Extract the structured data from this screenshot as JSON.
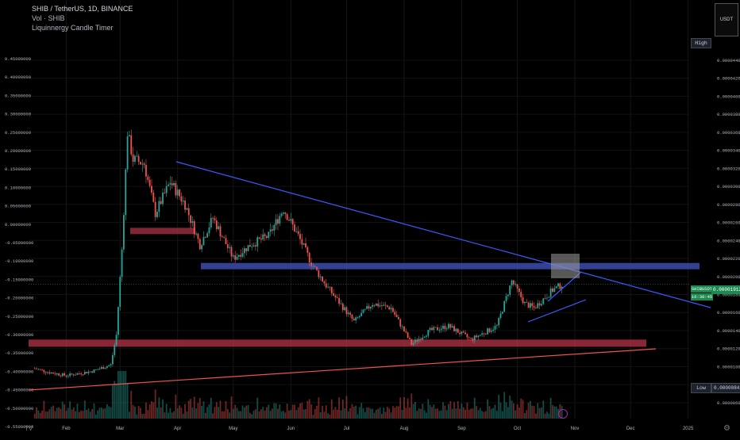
{
  "header": {
    "title": "SHIB / TetherUS, 1D, BINANCE",
    "volume_label": "Vol · SHIB",
    "indicator_label": "Liquinnergy Candle Timer"
  },
  "toolbar": {
    "currency_button": "USDT"
  },
  "badges": {
    "high": "High",
    "low": "Low",
    "low_value": "0.00000842",
    "symbol": "SHIBUSDT",
    "current_value": "0.00001912",
    "timer": "16:38:45"
  },
  "colors": {
    "background": "#000000",
    "up": "#26a69a",
    "down": "#ef5350",
    "trendline": "#3d5afe",
    "support_zone": "#b7344a",
    "resistance_zone": "#3f51b5",
    "target_box": "#9e9e9e"
  },
  "icons": {
    "tradingview": "tv-logo-icon",
    "settings": "gear-icon",
    "lightning": "lightning-icon"
  },
  "chart_data": {
    "type": "candlestick",
    "symbol": "SHIB / TetherUS",
    "interval": "1D",
    "exchange": "BINANCE",
    "x_tick_labels": [
      "Feb",
      "Mar",
      "Apr",
      "May",
      "Jun",
      "Jul",
      "Aug",
      "Sep",
      "Oct",
      "Nov",
      "Dec",
      "2025"
    ],
    "left_axis_labels": [
      "0.45000000",
      "0.40000000",
      "0.35000000",
      "0.30000000",
      "0.25000000",
      "0.20000000",
      "0.15000000",
      "0.10000000",
      "0.05000000",
      "0.00000000",
      "-0.05000000",
      "-0.10000000",
      "-0.15000000",
      "-0.20000000",
      "-0.25000000",
      "-0.30000000",
      "-0.35000000",
      "-0.40000000",
      "-0.45000000",
      "-0.50000000",
      "-0.55000000"
    ],
    "right_axis_labels": [
      "0.00004400",
      "0.00004200",
      "0.00004000",
      "0.00003800",
      "0.00003600",
      "0.00003400",
      "0.00003200",
      "0.00003000",
      "0.00002800",
      "0.00002600",
      "0.00002400",
      "0.00002200",
      "0.00002000",
      "0.00001800",
      "0.00001600",
      "0.00001400",
      "0.00001200",
      "0.00001000",
      "0.00000800",
      "0.00000600"
    ],
    "right_range": [
      5.2e-06,
      4.54e-05
    ],
    "price_path": [
      {
        "date": "2024-01-15",
        "price": 9.8e-06
      },
      {
        "date": "2024-01-22",
        "price": 9.4e-06
      },
      {
        "date": "2024-02-01",
        "price": 9e-06
      },
      {
        "date": "2024-02-15",
        "price": 9.5e-06
      },
      {
        "date": "2024-02-25",
        "price": 1.02e-05
      },
      {
        "date": "2024-02-28",
        "price": 1.35e-05
      },
      {
        "date": "2024-03-02",
        "price": 2.3e-05
      },
      {
        "date": "2024-03-05",
        "price": 3.6e-05
      },
      {
        "date": "2024-03-08",
        "price": 3.3e-05
      },
      {
        "date": "2024-03-14",
        "price": 3.25e-05
      },
      {
        "date": "2024-03-20",
        "price": 2.7e-05
      },
      {
        "date": "2024-03-28",
        "price": 3.05e-05
      },
      {
        "date": "2024-04-05",
        "price": 2.8e-05
      },
      {
        "date": "2024-04-13",
        "price": 2.35e-05
      },
      {
        "date": "2024-04-20",
        "price": 2.65e-05
      },
      {
        "date": "2024-05-01",
        "price": 2.2e-05
      },
      {
        "date": "2024-05-10",
        "price": 2.35e-05
      },
      {
        "date": "2024-05-20",
        "price": 2.45e-05
      },
      {
        "date": "2024-05-28",
        "price": 2.75e-05
      },
      {
        "date": "2024-06-05",
        "price": 2.45e-05
      },
      {
        "date": "2024-06-12",
        "price": 2.15e-05
      },
      {
        "date": "2024-06-20",
        "price": 1.9e-05
      },
      {
        "date": "2024-07-05",
        "price": 1.5e-05
      },
      {
        "date": "2024-07-15",
        "price": 1.7e-05
      },
      {
        "date": "2024-07-25",
        "price": 1.65e-05
      },
      {
        "date": "2024-08-05",
        "price": 1.25e-05
      },
      {
        "date": "2024-08-15",
        "price": 1.4e-05
      },
      {
        "date": "2024-08-25",
        "price": 1.45e-05
      },
      {
        "date": "2024-09-06",
        "price": 1.3e-05
      },
      {
        "date": "2024-09-20",
        "price": 1.45e-05
      },
      {
        "date": "2024-09-28",
        "price": 1.95e-05
      },
      {
        "date": "2024-10-05",
        "price": 1.7e-05
      },
      {
        "date": "2024-10-10",
        "price": 1.65e-05
      },
      {
        "date": "2024-10-20",
        "price": 1.85e-05
      },
      {
        "date": "2024-10-25",
        "price": 1.91e-05
      }
    ],
    "levels": {
      "current": 1.912e-05,
      "support_zone": [
        1.22e-05,
        1.3e-05
      ],
      "resistance_zone": [
        2.08e-05,
        2.15e-05
      ],
      "left_zone": [
        2.47e-05,
        2.54e-05
      ]
    }
  }
}
